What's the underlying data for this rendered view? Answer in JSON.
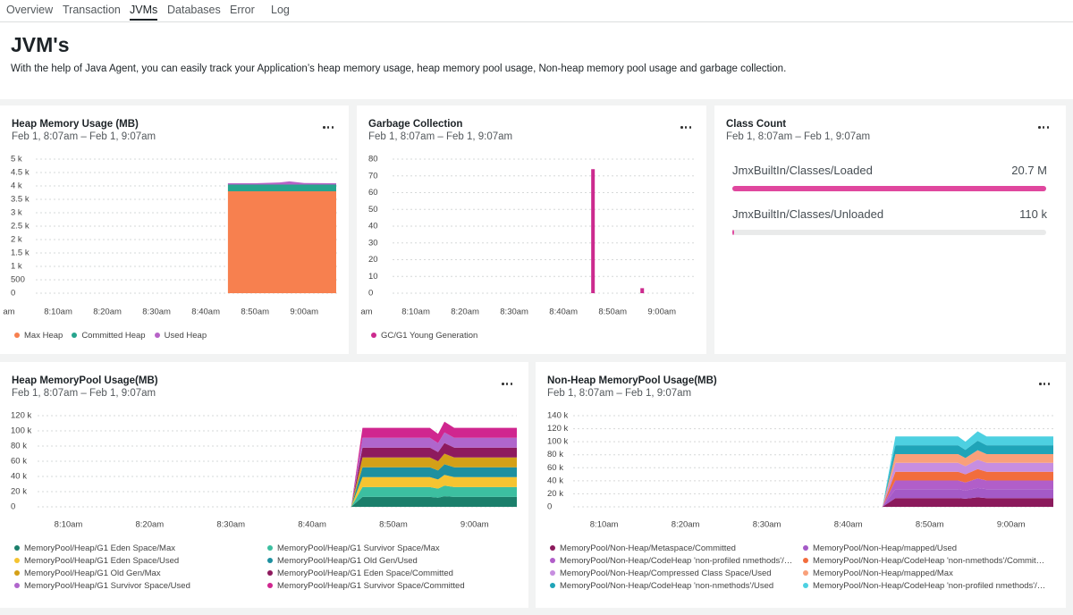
{
  "tabs": [
    "Overview",
    "Transaction",
    "JVMs",
    "Databases",
    "Error",
    "Log"
  ],
  "header": {
    "title": "JVM's",
    "description": "With the help of Java Agent, you can easily track your Application’s heap memory usage, heap memory pool usage, Non-heap memory pool usage and garbage collection."
  },
  "chart_data": [
    {
      "type": "area",
      "stacked": true,
      "grid": true,
      "title": "Heap Memory Usage (MB)",
      "subtitle": "Feb 1, 8:07am – Feb 1, 9:07am",
      "x": [
        44.5,
        50,
        55,
        57,
        60,
        66.5
      ],
      "xlim": [
        0,
        66.5
      ],
      "xticks": [
        {
          "value": 0,
          "label": "am"
        },
        {
          "value": 10,
          "label": "8:10am"
        },
        {
          "value": 20,
          "label": "8:20am"
        },
        {
          "value": 30,
          "label": "8:30am"
        },
        {
          "value": 40,
          "label": "8:40am"
        },
        {
          "value": 50,
          "label": "8:50am"
        },
        {
          "value": 60,
          "label": "9:00am"
        }
      ],
      "ylim": [
        0,
        5000
      ],
      "yticks": [
        0,
        500,
        {
          "value": 1000,
          "label": "1 k"
        },
        {
          "value": 1500,
          "label": "1.5 k"
        },
        {
          "value": 2000,
          "label": "2 k"
        },
        {
          "value": 2500,
          "label": "2.5 k"
        },
        {
          "value": 3000,
          "label": "3 k"
        },
        {
          "value": 3500,
          "label": "3.5 k"
        },
        {
          "value": 4000,
          "label": "4 k"
        },
        {
          "value": 4500,
          "label": "4.5 k"
        },
        {
          "value": 5000,
          "label": "5 k"
        }
      ],
      "series": [
        {
          "name": "Max Heap",
          "color": "#f7804f",
          "values": [
            3800,
            3800,
            3800,
            3800,
            3800,
            3800
          ]
        },
        {
          "name": "Committed Heap",
          "color": "#27a58e",
          "values": [
            250,
            250,
            250,
            250,
            250,
            250
          ]
        },
        {
          "name": "Used Heap",
          "color": "#b763c7",
          "values": [
            50,
            50,
            80,
            120,
            60,
            50
          ]
        }
      ]
    },
    {
      "type": "bar",
      "grid": true,
      "title": "Garbage Collection",
      "subtitle": "Feb 1, 8:07am – Feb 1, 9:07am",
      "x": [
        46,
        56
      ],
      "xlim": [
        0,
        66.5
      ],
      "xticks": [
        {
          "value": 0,
          "label": "am"
        },
        {
          "value": 10,
          "label": "8:10am"
        },
        {
          "value": 20,
          "label": "8:20am"
        },
        {
          "value": 30,
          "label": "8:30am"
        },
        {
          "value": 40,
          "label": "8:40am"
        },
        {
          "value": 50,
          "label": "8:50am"
        },
        {
          "value": 60,
          "label": "9:00am"
        }
      ],
      "ylim": [
        0,
        80
      ],
      "yticks": [
        0,
        10,
        20,
        30,
        40,
        50,
        60,
        70,
        80
      ],
      "series": [
        {
          "name": "GC/G1 Young Generation",
          "color": "#cc2a8e",
          "values": [
            74,
            3
          ]
        }
      ]
    },
    {
      "type": "area",
      "stacked": true,
      "grid": true,
      "title": "Heap MemoryPool Usage(MB)",
      "subtitle": "Feb 1, 8:07am – Feb 1, 9:07am",
      "x": [
        44.8,
        46.2,
        54.5,
        55.5,
        56.3,
        57.5,
        65.2
      ],
      "xlim": [
        2.9,
        65.2
      ],
      "xticks": [
        {
          "value": 10,
          "label": "8:10am"
        },
        {
          "value": 20,
          "label": "8:20am"
        },
        {
          "value": 30,
          "label": "8:30am"
        },
        {
          "value": 40,
          "label": "8:40am"
        },
        {
          "value": 50,
          "label": "8:50am"
        },
        {
          "value": 60,
          "label": "9:00am"
        }
      ],
      "ylim": [
        0,
        120000
      ],
      "yticks": [
        0,
        {
          "value": 20000,
          "label": "20 k"
        },
        {
          "value": 40000,
          "label": "40 k"
        },
        {
          "value": 60000,
          "label": "60 k"
        },
        {
          "value": 80000,
          "label": "80 k"
        },
        {
          "value": 100000,
          "label": "100 k"
        },
        {
          "value": 120000,
          "label": "120 k"
        }
      ],
      "series": [
        {
          "name": "MemoryPool/Heap/G1 Eden Space/Max",
          "color": "#1b7f6b",
          "values": [
            0,
            13000,
            13000,
            12000,
            14000,
            13000,
            13000
          ]
        },
        {
          "name": "MemoryPool/Heap/G1 Survivor Space/Max",
          "color": "#3cbfa0",
          "values": [
            0,
            13000,
            13000,
            12000,
            14000,
            13000,
            13000
          ]
        },
        {
          "name": "MemoryPool/Heap/G1 Eden Space/Used",
          "color": "#f5c431",
          "values": [
            0,
            13000,
            13000,
            12000,
            14000,
            13000,
            13000
          ]
        },
        {
          "name": "MemoryPool/Heap/G1 Old Gen/Used",
          "color": "#1e90a0",
          "values": [
            0,
            13000,
            13000,
            12000,
            14000,
            13000,
            13000
          ]
        },
        {
          "name": "MemoryPool/Heap/G1 Old Gen/Max",
          "color": "#d4a017",
          "values": [
            0,
            13000,
            13000,
            12000,
            14000,
            13000,
            13000
          ]
        },
        {
          "name": "MemoryPool/Heap/G1 Eden Space/Committed",
          "color": "#8e1a5e",
          "values": [
            0,
            13000,
            13000,
            12000,
            14000,
            13000,
            13000
          ]
        },
        {
          "name": "MemoryPool/Heap/G1 Survivor Space/Used",
          "color": "#b066cc",
          "values": [
            0,
            13000,
            13000,
            12000,
            14000,
            13000,
            13000
          ]
        },
        {
          "name": "MemoryPool/Heap/G1 Survivor Space/Committed",
          "color": "#d0268f",
          "values": [
            0,
            13000,
            13000,
            12000,
            14000,
            13000,
            13000
          ]
        }
      ]
    },
    {
      "type": "area",
      "stacked": true,
      "grid": true,
      "title": "Non-Heap MemoryPool Usage(MB)",
      "subtitle": "Feb 1, 8:07am – Feb 1, 9:07am",
      "x": [
        44.2,
        45.8,
        53.5,
        54.4,
        55.9,
        57,
        65.2
      ],
      "xlim": [
        2.9,
        65.2
      ],
      "xticks": [
        {
          "value": 10,
          "label": "8:10am"
        },
        {
          "value": 20,
          "label": "8:20am"
        },
        {
          "value": 30,
          "label": "8:30am"
        },
        {
          "value": 40,
          "label": "8:40am"
        },
        {
          "value": 50,
          "label": "8:50am"
        },
        {
          "value": 60,
          "label": "9:00am"
        }
      ],
      "ylim": [
        0,
        140000
      ],
      "yticks": [
        0,
        {
          "value": 20000,
          "label": "20 k"
        },
        {
          "value": 40000,
          "label": "40 k"
        },
        {
          "value": 60000,
          "label": "60 k"
        },
        {
          "value": 80000,
          "label": "80 k"
        },
        {
          "value": 100000,
          "label": "100 k"
        },
        {
          "value": 120000,
          "label": "120 k"
        },
        {
          "value": 140000,
          "label": "140 k"
        }
      ],
      "series": [
        {
          "name": "MemoryPool/Non-Heap/Metaspace/Committed",
          "color": "#8b1a5c",
          "values": [
            0,
            13500,
            13500,
            12500,
            14500,
            13500,
            13500
          ]
        },
        {
          "name": "MemoryPool/Non-Heap/mapped/Used",
          "color": "#a45ac7",
          "values": [
            0,
            13500,
            13500,
            12500,
            14500,
            13500,
            13500
          ]
        },
        {
          "name": "MemoryPool/Non-Heap/CodeHeap 'non-profiled nmethods'/…",
          "color": "#b15ec9",
          "values": [
            0,
            13500,
            13500,
            12500,
            14500,
            13500,
            13500
          ]
        },
        {
          "name": "MemoryPool/Non-Heap/CodeHeap 'non-nmethods'/Commit…",
          "color": "#f26d3d",
          "values": [
            0,
            13500,
            13500,
            12500,
            14500,
            13500,
            13500
          ]
        },
        {
          "name": "MemoryPool/Non-Heap/Compressed Class Space/Used",
          "color": "#c78ee0",
          "values": [
            0,
            13500,
            13500,
            12500,
            14500,
            13500,
            13500
          ]
        },
        {
          "name": "MemoryPool/Non-Heap/mapped/Max",
          "color": "#f9a07a",
          "values": [
            0,
            13500,
            13500,
            12500,
            14500,
            13500,
            13500
          ]
        },
        {
          "name": "MemoryPool/Non-Heap/CodeHeap 'non-nmethods'/Used",
          "color": "#1fa4b8",
          "values": [
            0,
            13500,
            13500,
            12500,
            14500,
            13500,
            13500
          ]
        },
        {
          "name": "MemoryPool/Non-Heap/CodeHeap 'non-profiled nmethods'/…",
          "color": "#4dd0e1",
          "values": [
            0,
            13500,
            13500,
            12500,
            14500,
            13500,
            13500
          ]
        }
      ]
    }
  ],
  "class_count": {
    "title": "Class Count",
    "subtitle": "Feb 1, 8:07am – Feb 1, 9:07am",
    "color": "#e0479e",
    "items": [
      {
        "name": "JmxBuiltIn/Classes/Loaded",
        "value": 20700000,
        "value_label": "20.7 M"
      },
      {
        "name": "JmxBuiltIn/Classes/Unloaded",
        "value": 110000,
        "value_label": "110 k"
      }
    ]
  }
}
